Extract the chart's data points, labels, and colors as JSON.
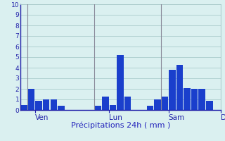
{
  "bar_values": [
    0.5,
    2.0,
    0.85,
    1.0,
    1.0,
    0.4,
    0,
    0,
    0,
    0,
    0.4,
    1.3,
    0.5,
    5.2,
    1.3,
    0,
    0,
    0.4,
    1.0,
    1.3,
    3.8,
    4.3,
    2.1,
    2.0,
    2.0,
    0.9,
    0
  ],
  "n_bars": 27,
  "ven_tick": 1.5,
  "lun_tick": 11.5,
  "sam_tick": 19.5,
  "dim_tick": 26.5,
  "ven_line": 0.5,
  "lun_line": 9.5,
  "sam_line": 18.5,
  "dim_line": 26.5,
  "xlabel": "Précipitations 24h ( mm )",
  "ylim": [
    0,
    10
  ],
  "yticks": [
    0,
    1,
    2,
    3,
    4,
    5,
    6,
    7,
    8,
    9,
    10
  ],
  "bar_color": "#1a3fcc",
  "bg_color": "#daf0f0",
  "grid_color": "#aacccc",
  "separator_color": "#888899",
  "axis_color": "#2222aa",
  "text_color": "#2222bb",
  "tick_label_color": "#2222aa"
}
